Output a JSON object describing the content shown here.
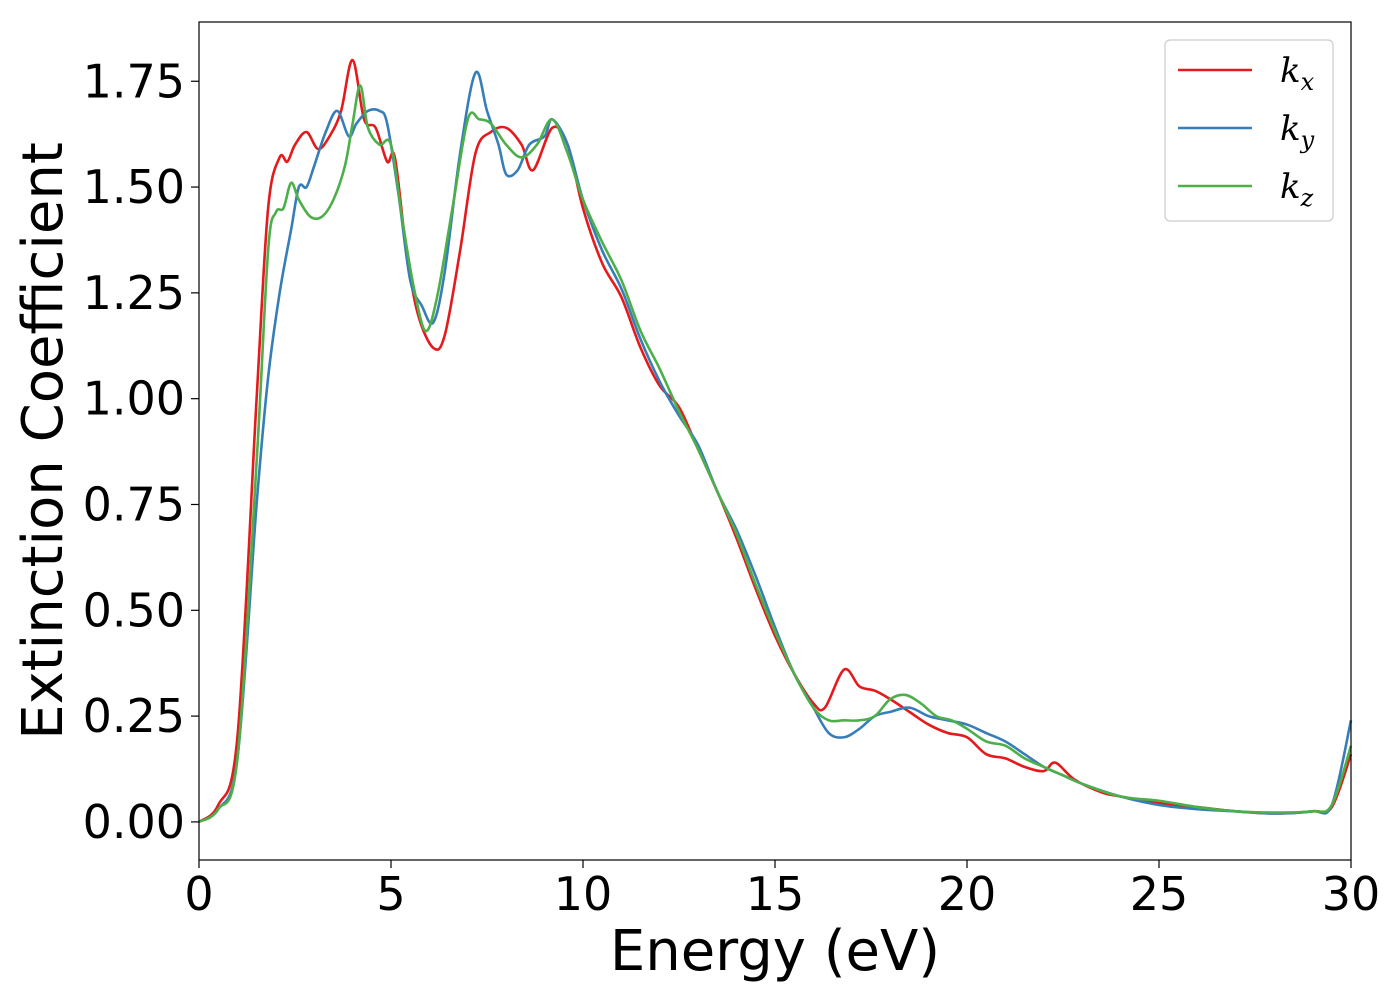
{
  "chart_data": {
    "type": "line",
    "title": "",
    "xlabel": "Energy (eV)",
    "ylabel": "Extinction Coefficient",
    "xlim": [
      0,
      30
    ],
    "ylim": [
      -0.09,
      1.89
    ],
    "xticks": [
      0,
      5,
      10,
      15,
      20,
      25,
      30
    ],
    "xtick_labels": [
      "0",
      "5",
      "10",
      "15",
      "20",
      "25",
      "30"
    ],
    "yticks": [
      0.0,
      0.25,
      0.5,
      0.75,
      1.0,
      1.25,
      1.5,
      1.75
    ],
    "ytick_labels": [
      "0.00",
      "0.25",
      "0.50",
      "0.75",
      "1.00",
      "1.25",
      "1.50",
      "1.75"
    ],
    "grid": false,
    "legend": {
      "position": "top-right"
    },
    "series": [
      {
        "name": "k_x",
        "name_main": "k",
        "name_sub": "x",
        "color": "#e41a1c",
        "x": [
          0,
          0.5,
          1.0,
          1.5,
          1.8,
          2.1,
          2.3,
          2.5,
          2.8,
          3.1,
          3.4,
          3.7,
          4.0,
          4.3,
          4.6,
          4.9,
          5.1,
          5.4,
          5.7,
          6.1,
          6.4,
          6.8,
          7.2,
          7.6,
          8.0,
          8.4,
          8.7,
          9.2,
          9.6,
          10.0,
          10.5,
          11.0,
          11.5,
          12.0,
          12.5,
          13.0,
          13.5,
          14.0,
          14.5,
          15.0,
          15.5,
          16.0,
          16.3,
          16.8,
          17.2,
          17.6,
          18.0,
          18.5,
          19.0,
          19.5,
          20.0,
          20.5,
          21.0,
          21.5,
          22.0,
          22.3,
          22.8,
          23.5,
          24.0,
          25.0,
          26.0,
          27.0,
          28.0,
          29.0,
          29.5,
          30.0
        ],
        "y": [
          0.0,
          0.04,
          0.2,
          1.0,
          1.45,
          1.57,
          1.56,
          1.6,
          1.63,
          1.59,
          1.62,
          1.68,
          1.8,
          1.66,
          1.64,
          1.56,
          1.57,
          1.35,
          1.2,
          1.12,
          1.15,
          1.35,
          1.58,
          1.63,
          1.64,
          1.6,
          1.54,
          1.64,
          1.6,
          1.45,
          1.32,
          1.24,
          1.12,
          1.03,
          0.98,
          0.88,
          0.78,
          0.67,
          0.55,
          0.44,
          0.35,
          0.28,
          0.27,
          0.36,
          0.32,
          0.31,
          0.29,
          0.26,
          0.23,
          0.21,
          0.2,
          0.16,
          0.15,
          0.13,
          0.12,
          0.14,
          0.1,
          0.07,
          0.06,
          0.045,
          0.035,
          0.025,
          0.02,
          0.025,
          0.035,
          0.16
        ]
      },
      {
        "name": "k_y",
        "name_main": "k",
        "name_sub": "y",
        "color": "#377eb8",
        "x": [
          0,
          0.5,
          1.0,
          1.5,
          1.8,
          2.1,
          2.4,
          2.6,
          2.8,
          3.0,
          3.3,
          3.6,
          3.9,
          4.1,
          4.4,
          4.7,
          4.9,
          5.2,
          5.5,
          5.8,
          6.1,
          6.4,
          6.8,
          7.2,
          7.5,
          7.8,
          8.0,
          8.3,
          8.6,
          9.0,
          9.2,
          9.6,
          10.0,
          10.5,
          11.0,
          11.5,
          12.0,
          12.5,
          13.0,
          13.5,
          14.0,
          14.5,
          15.0,
          15.5,
          16.0,
          16.4,
          16.8,
          17.2,
          17.6,
          18.0,
          18.5,
          19.0,
          19.5,
          20.0,
          20.5,
          21.0,
          21.5,
          22.0,
          22.5,
          23.0,
          24.0,
          25.0,
          26.0,
          27.0,
          28.0,
          29.0,
          29.5,
          30.0
        ],
        "y": [
          0.0,
          0.03,
          0.15,
          0.75,
          1.05,
          1.25,
          1.4,
          1.5,
          1.5,
          1.55,
          1.63,
          1.68,
          1.62,
          1.65,
          1.68,
          1.68,
          1.65,
          1.48,
          1.28,
          1.22,
          1.18,
          1.3,
          1.58,
          1.77,
          1.68,
          1.6,
          1.53,
          1.54,
          1.6,
          1.62,
          1.66,
          1.6,
          1.47,
          1.35,
          1.26,
          1.14,
          1.04,
          0.96,
          0.89,
          0.78,
          0.69,
          0.58,
          0.46,
          0.35,
          0.27,
          0.21,
          0.2,
          0.22,
          0.25,
          0.26,
          0.27,
          0.25,
          0.24,
          0.23,
          0.21,
          0.19,
          0.16,
          0.13,
          0.11,
          0.09,
          0.06,
          0.04,
          0.03,
          0.025,
          0.02,
          0.025,
          0.04,
          0.24
        ]
      },
      {
        "name": "k_z",
        "name_main": "k",
        "name_sub": "z",
        "color": "#4daf4a",
        "x": [
          0,
          0.5,
          1.0,
          1.5,
          1.8,
          2.0,
          2.2,
          2.4,
          2.6,
          2.9,
          3.2,
          3.5,
          3.8,
          4.0,
          4.2,
          4.4,
          4.7,
          5.0,
          5.3,
          5.6,
          5.9,
          6.2,
          6.6,
          7.0,
          7.3,
          7.6,
          8.0,
          8.4,
          8.8,
          9.2,
          9.6,
          10.0,
          10.5,
          11.0,
          11.5,
          12.0,
          12.5,
          13.0,
          13.5,
          14.0,
          14.5,
          15.0,
          15.5,
          16.0,
          16.4,
          16.8,
          17.2,
          17.6,
          18.0,
          18.4,
          18.8,
          19.2,
          19.6,
          20.0,
          20.5,
          21.0,
          21.5,
          22.0,
          22.5,
          23.0,
          24.0,
          25.0,
          26.0,
          27.0,
          28.0,
          29.0,
          29.5,
          30.0
        ],
        "y": [
          0.0,
          0.03,
          0.15,
          0.85,
          1.35,
          1.44,
          1.45,
          1.51,
          1.47,
          1.43,
          1.43,
          1.47,
          1.55,
          1.65,
          1.74,
          1.64,
          1.6,
          1.6,
          1.42,
          1.26,
          1.16,
          1.24,
          1.45,
          1.66,
          1.66,
          1.65,
          1.6,
          1.57,
          1.6,
          1.66,
          1.58,
          1.47,
          1.37,
          1.28,
          1.16,
          1.07,
          0.97,
          0.88,
          0.78,
          0.68,
          0.56,
          0.45,
          0.35,
          0.27,
          0.24,
          0.24,
          0.24,
          0.25,
          0.29,
          0.3,
          0.28,
          0.25,
          0.24,
          0.22,
          0.19,
          0.18,
          0.15,
          0.13,
          0.11,
          0.09,
          0.06,
          0.05,
          0.035,
          0.025,
          0.022,
          0.025,
          0.04,
          0.18
        ]
      }
    ]
  }
}
